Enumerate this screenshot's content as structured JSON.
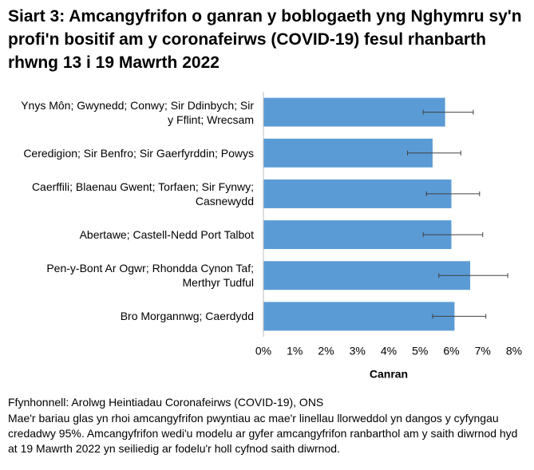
{
  "chart_data": {
    "type": "bar",
    "orientation": "horizontal",
    "title": "Siart 3: Amcangyfrifon o ganran y boblogaeth yng Nghymru sy'n profi'n bositif am y coronafeirws (COVID-19) fesul rhanbarth rhwng 13 i 19 Mawrth 2022",
    "categories": [
      "Ynys Môn; Gwynedd; Conwy; Sir Ddinbych; Sir y Fflint; Wrecsam",
      "Ceredigion; Sir Benfro; Sir Gaerfyrddin; Powys",
      "Caerffili; Blaenau Gwent; Torfaen; Sir Fynwy; Casnewydd",
      "Abertawe; Castell-Nedd Port Talbot",
      "Pen-y-Bont Ar Ogwr; Rhondda Cynon Taf; Merthyr Tudful",
      "Bro Morgannwg; Caerdydd"
    ],
    "series": [
      {
        "color": "#5b9bd5",
        "values": [
          5.8,
          5.4,
          6.0,
          6.0,
          6.6,
          6.1
        ],
        "lower": [
          5.1,
          4.6,
          5.2,
          5.1,
          5.6,
          5.4
        ],
        "upper": [
          6.7,
          6.3,
          6.9,
          7.0,
          7.8,
          7.1
        ]
      }
    ],
    "xlabel": "Canran",
    "xlim": [
      0,
      8
    ],
    "xticks": [
      {
        "value": 0,
        "label": "0%"
      },
      {
        "value": 1,
        "label": "1%"
      },
      {
        "value": 2,
        "label": "2%"
      },
      {
        "value": 3,
        "label": "3%"
      },
      {
        "value": 4,
        "label": "4%"
      },
      {
        "value": 5,
        "label": "5%"
      },
      {
        "value": 6,
        "label": "6%"
      },
      {
        "value": 7,
        "label": "7%"
      },
      {
        "value": 8,
        "label": "8%"
      }
    ],
    "source": "Ffynhonnell: Arolwg Heintiadau Coronafeirws (COVID-19), ONS",
    "note": "Mae'r bariau glas yn rhoi amcangyfrifon pwyntiau ac mae'r linellau llorweddol yn dangos y cyfyngau credadwy 95%. Amcangyfrifon wedi'u modelu ar gyfer amcangyfrifon ranbarthol am y saith diwrnod hyd at 19 Mawrth 2022 yn seiliedig ar fodelu'r holl cyfnod saith diwrnod."
  }
}
